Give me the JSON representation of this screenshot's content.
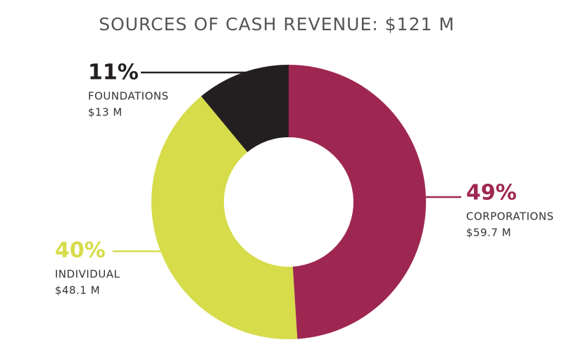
{
  "chart_data": {
    "type": "donut",
    "title": "SOURCES OF CASH REVENUE:  $121 M",
    "categories": [
      "CORPORATIONS",
      "INDIVIDUAL",
      "FOUNDATIONS"
    ],
    "values": [
      49,
      40,
      11
    ],
    "value_labels": [
      "49%",
      "40%",
      "11%"
    ],
    "amounts": [
      "$59.7 M",
      "$48.1 M",
      "$13 M"
    ],
    "colors": [
      "#9e2752",
      "#d6dc4a",
      "#231f20"
    ]
  }
}
